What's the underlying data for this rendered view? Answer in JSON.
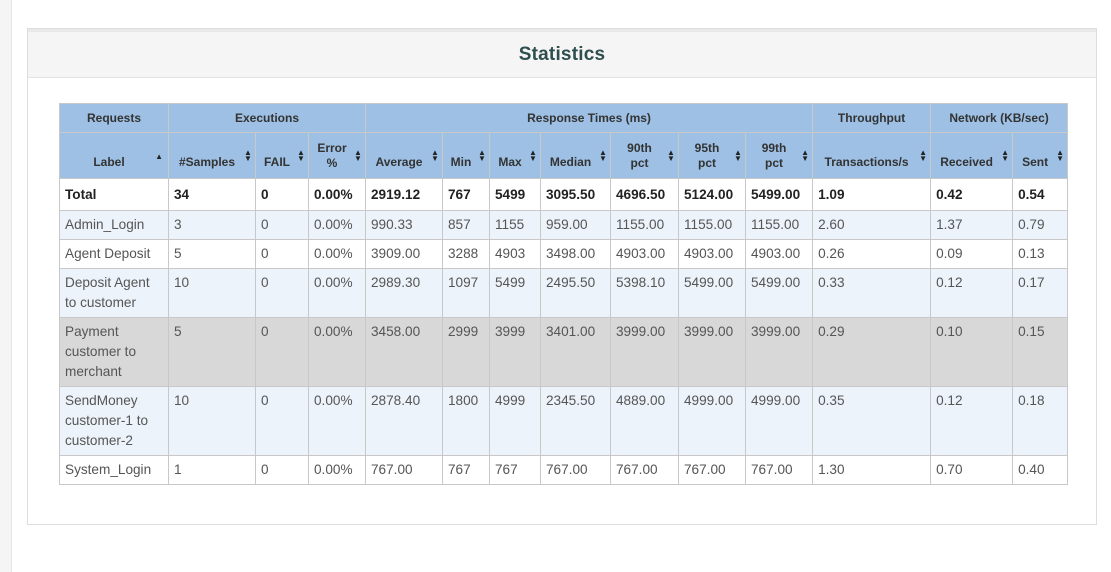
{
  "title": "Statistics",
  "group_headers": {
    "requests": "Requests",
    "executions": "Executions",
    "response_times": "Response Times (ms)",
    "throughput": "Throughput",
    "network": "Network (KB/sec)"
  },
  "columns": {
    "label": "Label",
    "samples": "#Samples",
    "fail": "FAIL",
    "error_pct_line1": "Error",
    "error_pct_line2": "%",
    "average": "Average",
    "min": "Min",
    "max": "Max",
    "median": "Median",
    "p90_line1": "90th",
    "p90_line2": "pct",
    "p95_line1": "95th",
    "p95_line2": "pct",
    "p99_line1": "99th",
    "p99_line2": "pct",
    "transactions": "Transactions/s",
    "received": "Received",
    "sent": "Sent"
  },
  "total": {
    "label": "Total",
    "samples": "34",
    "fail": "0",
    "error": "0.00%",
    "average": "2919.12",
    "min": "767",
    "max": "5499",
    "median": "3095.50",
    "p90": "4696.50",
    "p95": "5124.00",
    "p99": "5499.00",
    "tps": "1.09",
    "received": "0.42",
    "sent": "0.54"
  },
  "rows": [
    {
      "label": "Admin_Login",
      "samples": "3",
      "fail": "0",
      "error": "0.00%",
      "average": "990.33",
      "min": "857",
      "max": "1155",
      "median": "959.00",
      "p90": "1155.00",
      "p95": "1155.00",
      "p99": "1155.00",
      "tps": "2.60",
      "received": "1.37",
      "sent": "0.79"
    },
    {
      "label": "Agent Deposit",
      "samples": "5",
      "fail": "0",
      "error": "0.00%",
      "average": "3909.00",
      "min": "3288",
      "max": "4903",
      "median": "3498.00",
      "p90": "4903.00",
      "p95": "4903.00",
      "p99": "4903.00",
      "tps": "0.26",
      "received": "0.09",
      "sent": "0.13"
    },
    {
      "label": "Deposit Agent to customer",
      "samples": "10",
      "fail": "0",
      "error": "0.00%",
      "average": "2989.30",
      "min": "1097",
      "max": "5499",
      "median": "2495.50",
      "p90": "5398.10",
      "p95": "5499.00",
      "p99": "5499.00",
      "tps": "0.33",
      "received": "0.12",
      "sent": "0.17"
    },
    {
      "label": "Payment customer to merchant",
      "samples": "5",
      "fail": "0",
      "error": "0.00%",
      "average": "3458.00",
      "min": "2999",
      "max": "3999",
      "median": "3401.00",
      "p90": "3999.00",
      "p95": "3999.00",
      "p99": "3999.00",
      "tps": "0.29",
      "received": "0.10",
      "sent": "0.15"
    },
    {
      "label": "SendMoney customer-1 to customer-2",
      "samples": "10",
      "fail": "0",
      "error": "0.00%",
      "average": "2878.40",
      "min": "1800",
      "max": "4999",
      "median": "2345.50",
      "p90": "4889.00",
      "p95": "4999.00",
      "p99": "4999.00",
      "tps": "0.35",
      "received": "0.12",
      "sent": "0.18"
    },
    {
      "label": "System_Login",
      "samples": "1",
      "fail": "0",
      "error": "0.00%",
      "average": "767.00",
      "min": "767",
      "max": "767",
      "median": "767.00",
      "p90": "767.00",
      "p95": "767.00",
      "p99": "767.00",
      "tps": "1.30",
      "received": "0.70",
      "sent": "0.40"
    }
  ]
}
